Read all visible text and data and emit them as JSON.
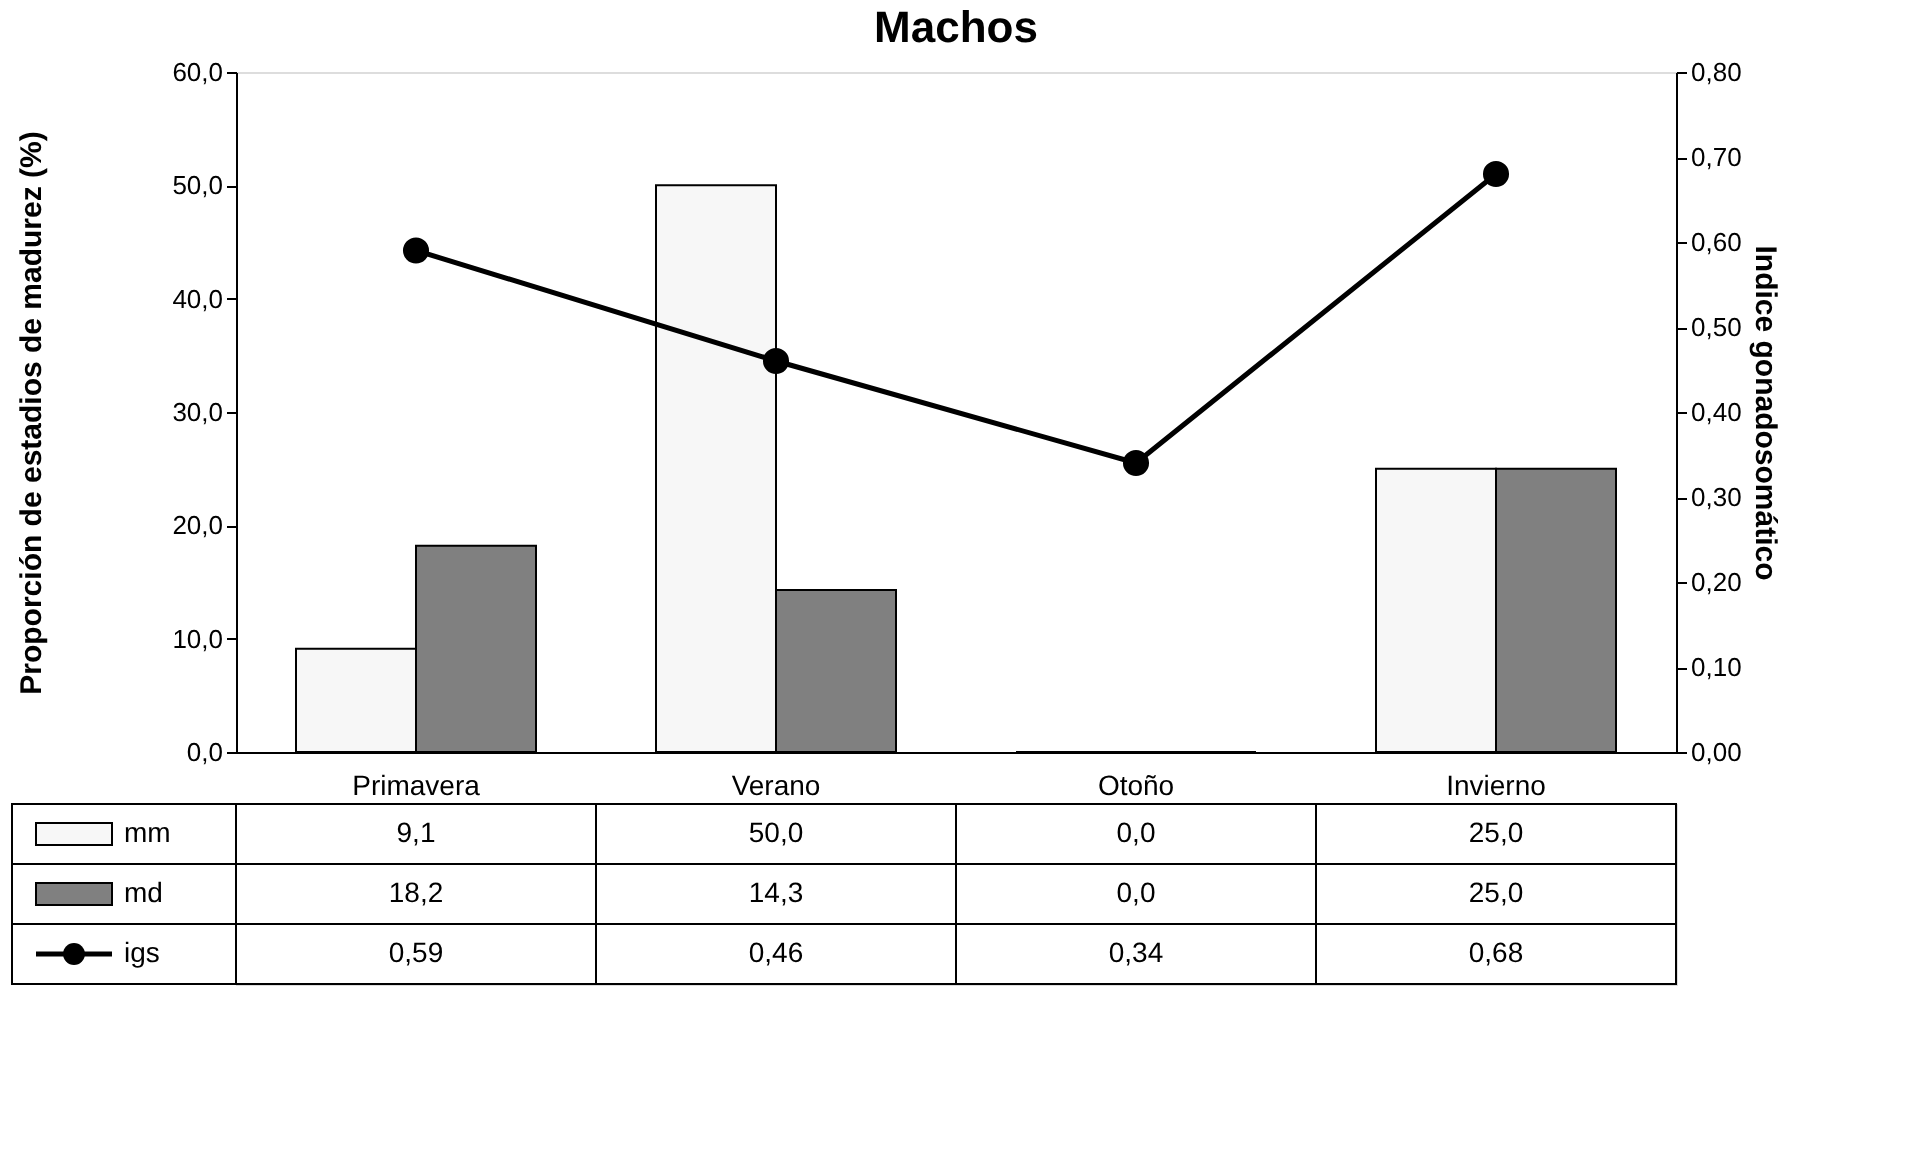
{
  "chart_data": {
    "type": "bar",
    "title": "Machos",
    "ylabel": "Proporción de estadios de madurez (%)",
    "y2label": "Indice gonadosomático",
    "categories": [
      "Primavera",
      "Verano",
      "Otoño",
      "Invierno"
    ],
    "series": [
      {
        "name": "mm",
        "color": "#f7f7f7",
        "values": [
          9.1,
          50.0,
          0.0,
          25.0
        ],
        "value_labels": [
          "9,1",
          "50,0",
          "0,0",
          "25,0"
        ]
      },
      {
        "name": "md",
        "color": "#808080",
        "values": [
          18.2,
          14.3,
          0.0,
          25.0
        ],
        "value_labels": [
          "18,2",
          "14,3",
          "0,0",
          "25,0"
        ]
      },
      {
        "name": "igs",
        "type": "line",
        "axis": "y2",
        "color": "#000000",
        "values": [
          0.59,
          0.46,
          0.34,
          0.68
        ],
        "value_labels": [
          "0,59",
          "0,46",
          "0,34",
          "0,68"
        ]
      }
    ],
    "ylim": [
      0,
      60
    ],
    "yticks": [
      {
        "value": 0,
        "label": "0,0"
      },
      {
        "value": 10,
        "label": "10,0"
      },
      {
        "value": 20,
        "label": "20,0"
      },
      {
        "value": 30,
        "label": "30,0"
      },
      {
        "value": 40,
        "label": "40,0"
      },
      {
        "value": 50,
        "label": "50,0"
      },
      {
        "value": 60,
        "label": "60,0"
      }
    ],
    "y2lim": [
      0,
      0.8
    ],
    "y2ticks": [
      {
        "value": 0,
        "label": "0,00"
      },
      {
        "value": 0.1,
        "label": "0,10"
      },
      {
        "value": 0.2,
        "label": "0,20"
      },
      {
        "value": 0.3,
        "label": "0,30"
      },
      {
        "value": 0.4,
        "label": "0,40"
      },
      {
        "value": 0.5,
        "label": "0,50"
      },
      {
        "value": 0.6,
        "label": "0,60"
      },
      {
        "value": 0.7,
        "label": "0,70"
      },
      {
        "value": 0.8,
        "label": "0,80"
      }
    ],
    "marker": "circle",
    "line_style": "solid",
    "legend": "bottom",
    "grid": false,
    "data_labels": true
  }
}
